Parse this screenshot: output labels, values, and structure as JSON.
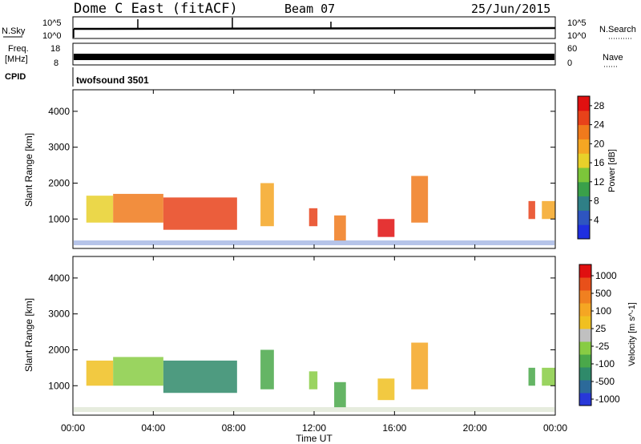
{
  "header": {
    "station": "Dome C East (fitACF)",
    "beam": "Beam 07",
    "date": "25/Jun/2015"
  },
  "panels": {
    "nsky": {
      "label": "N.Sky",
      "top_tick": "10^5",
      "bottom_tick": "10^0"
    },
    "nsearch": {
      "label": "N.Search",
      "top_tick": "10^5",
      "bottom_tick": "10^0"
    },
    "freq": {
      "label_line1": "Freq.",
      "label_line2": "[MHz]",
      "top_tick": "18",
      "bottom_tick": "8"
    },
    "nave": {
      "label": "Nave",
      "top_tick": "60",
      "bottom_tick": "0"
    },
    "cpid": {
      "label": "CPID",
      "program": "twofsound 3501"
    }
  },
  "chart_data": [
    {
      "type": "heatmap",
      "title": "",
      "xlabel": "Time UT",
      "ylabel": "Slant Range [km]",
      "x_ticks": [
        "00:00",
        "04:00",
        "08:00",
        "12:00",
        "16:00",
        "20:00",
        "00:00"
      ],
      "y_ticks": [
        "1000",
        "2000",
        "3000",
        "4000"
      ],
      "ylim": [
        180,
        4600
      ],
      "colorbar": {
        "label": "Power [dB]",
        "ticks": [
          "4",
          "8",
          "12",
          "16",
          "20",
          "24",
          "28"
        ],
        "range": [
          0,
          30
        ],
        "colors": [
          "#1f2fe0",
          "#2e55c0",
          "#2f7f86",
          "#3aa04a",
          "#7cc63a",
          "#e8d02a",
          "#f5a623",
          "#f07a1c",
          "#e8421a",
          "#e01010"
        ]
      },
      "echo_regions": [
        {
          "t_start": "00:40",
          "t_end": "02:00",
          "range_km": [
            900,
            1650
          ],
          "power_db": 16
        },
        {
          "t_start": "02:00",
          "t_end": "04:30",
          "range_km": [
            900,
            1700
          ],
          "power_db": 22
        },
        {
          "t_start": "04:30",
          "t_end": "08:10",
          "range_km": [
            700,
            1600
          ],
          "power_db": 26
        },
        {
          "t_start": "09:20",
          "t_end": "10:00",
          "range_km": [
            800,
            2000
          ],
          "power_db": 20
        },
        {
          "t_start": "11:45",
          "t_end": "12:10",
          "range_km": [
            800,
            1300
          ],
          "power_db": 24
        },
        {
          "t_start": "13:00",
          "t_end": "13:35",
          "range_km": [
            400,
            1100
          ],
          "power_db": 22
        },
        {
          "t_start": "15:10",
          "t_end": "16:00",
          "range_km": [
            500,
            1000
          ],
          "power_db": 28
        },
        {
          "t_start": "16:50",
          "t_end": "17:40",
          "range_km": [
            900,
            2200
          ],
          "power_db": 22
        },
        {
          "t_start": "22:40",
          "t_end": "23:00",
          "range_km": [
            1000,
            1500
          ],
          "power_db": 26
        },
        {
          "t_start": "23:20",
          "t_end": "24:00",
          "range_km": [
            1000,
            1500
          ],
          "power_db": 20
        }
      ]
    },
    {
      "type": "heatmap",
      "title": "",
      "xlabel": "Time UT",
      "ylabel": "Slant Range [km]",
      "x_ticks": [
        "00:00",
        "04:00",
        "08:00",
        "12:00",
        "16:00",
        "20:00",
        "00:00"
      ],
      "y_ticks": [
        "1000",
        "2000",
        "3000",
        "4000"
      ],
      "ylim": [
        180,
        4600
      ],
      "colorbar": {
        "label": "Velocity [m s^-1]",
        "ticks": [
          "1000",
          "500",
          "100",
          "25",
          "-25",
          "-100",
          "-500",
          "-1000"
        ],
        "range": [
          -1000,
          1000
        ],
        "colors": [
          "#2838d8",
          "#2c6a9a",
          "#2f8a6a",
          "#4aa84a",
          "#88cc44",
          "#c0c0c0",
          "#f0c020",
          "#f5a623",
          "#f08020",
          "#e8501a",
          "#e01010"
        ]
      },
      "echo_regions": [
        {
          "t_start": "00:40",
          "t_end": "02:00",
          "range_km": [
            1000,
            1700
          ],
          "velocity_ms": 100
        },
        {
          "t_start": "02:00",
          "t_end": "04:30",
          "range_km": [
            1000,
            1800
          ],
          "velocity_ms": -100
        },
        {
          "t_start": "04:30",
          "t_end": "08:10",
          "range_km": [
            800,
            1700
          ],
          "velocity_ms": -500
        },
        {
          "t_start": "09:20",
          "t_end": "10:00",
          "range_km": [
            900,
            2000
          ],
          "velocity_ms": -300
        },
        {
          "t_start": "11:45",
          "t_end": "12:10",
          "range_km": [
            900,
            1400
          ],
          "velocity_ms": -200
        },
        {
          "t_start": "13:00",
          "t_end": "13:35",
          "range_km": [
            400,
            1100
          ],
          "velocity_ms": -300
        },
        {
          "t_start": "15:10",
          "t_end": "16:00",
          "range_km": [
            600,
            1200
          ],
          "velocity_ms": 200
        },
        {
          "t_start": "16:50",
          "t_end": "17:40",
          "range_km": [
            900,
            2200
          ],
          "velocity_ms": 300
        },
        {
          "t_start": "22:40",
          "t_end": "23:00",
          "range_km": [
            1000,
            1500
          ],
          "velocity_ms": -300
        },
        {
          "t_start": "23:20",
          "t_end": "24:00",
          "range_km": [
            1000,
            1500
          ],
          "velocity_ms": -200
        }
      ]
    }
  ],
  "colors": {
    "axis": "#000000",
    "background": "#ffffff"
  }
}
